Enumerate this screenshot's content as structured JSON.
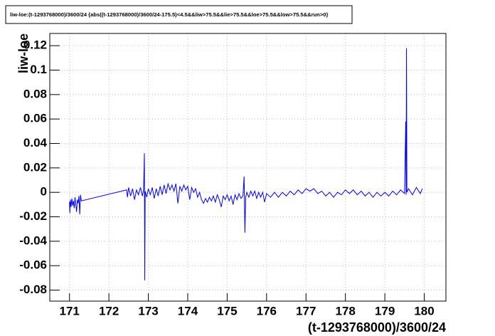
{
  "chart_data": {
    "type": "line",
    "title": "liw-loe:(t-1293768000)/3600/24 {abs((t-1293768000)/3600/24-175.5)<4.5&&liw>75.5&&lie>75.5&&loe>75.5&&low>75.5&&run>0}",
    "x_label": "(t-1293768000)/3600/24",
    "y_label": "liw-loe",
    "color": "#0000ff",
    "grid": true,
    "xlim": [
      170.5,
      180.55
    ],
    "ylim": [
      -0.089,
      0.13
    ],
    "xticks": [
      171,
      172,
      173,
      174,
      175,
      176,
      177,
      178,
      179,
      180
    ],
    "yticks": [
      -0.08,
      -0.06,
      -0.04,
      -0.02,
      0,
      0.02,
      0.04,
      0.06,
      0.08,
      0.1,
      0.12
    ],
    "x": [
      171.0,
      171.01,
      171.02,
      171.04,
      171.06,
      171.08,
      171.1,
      171.12,
      171.14,
      171.16,
      171.18,
      171.2,
      171.22,
      171.24,
      171.26,
      171.28,
      171.3,
      172.45,
      172.47,
      172.5,
      172.55,
      172.6,
      172.65,
      172.7,
      172.75,
      172.8,
      172.85,
      172.88,
      172.9,
      172.91,
      172.92,
      172.96,
      173.0,
      173.05,
      173.1,
      173.15,
      173.2,
      173.25,
      173.3,
      173.35,
      173.4,
      173.45,
      173.5,
      173.55,
      173.6,
      173.65,
      173.7,
      173.75,
      173.8,
      173.85,
      173.9,
      173.95,
      174.0,
      174.05,
      174.1,
      174.15,
      174.2,
      174.25,
      174.3,
      174.35,
      174.4,
      174.45,
      174.5,
      174.55,
      174.6,
      174.65,
      174.7,
      174.75,
      174.8,
      174.85,
      174.9,
      174.95,
      175.0,
      175.05,
      175.1,
      175.15,
      175.2,
      175.25,
      175.3,
      175.35,
      175.4,
      175.43,
      175.45,
      175.47,
      175.5,
      175.55,
      175.6,
      175.65,
      175.7,
      175.75,
      175.8,
      175.85,
      175.9,
      175.95,
      176.0,
      176.1,
      176.2,
      176.3,
      176.4,
      176.5,
      176.6,
      176.7,
      176.8,
      176.9,
      177.0,
      177.1,
      177.2,
      177.3,
      177.4,
      177.5,
      177.6,
      177.7,
      177.8,
      177.9,
      178.0,
      178.1,
      178.2,
      178.3,
      178.4,
      178.5,
      178.6,
      178.7,
      178.8,
      178.9,
      179.0,
      179.1,
      179.2,
      179.3,
      179.4,
      179.5,
      179.53,
      179.54,
      179.55,
      179.56,
      179.6,
      179.7,
      179.8,
      179.9,
      179.95
    ],
    "values": [
      -0.008,
      -0.017,
      -0.006,
      -0.012,
      -0.005,
      -0.011,
      -0.007,
      -0.013,
      -0.004,
      -0.01,
      -0.016,
      -0.006,
      -0.009,
      -0.003,
      -0.018,
      -0.002,
      -0.007,
      0.002,
      -0.004,
      0.004,
      -0.003,
      0.003,
      -0.006,
      0.002,
      -0.002,
      0.004,
      -0.003,
      0.002,
      0.032,
      -0.072,
      0.001,
      -0.004,
      0.003,
      -0.002,
      0.004,
      -0.005,
      0.003,
      -0.003,
      0.005,
      -0.002,
      0.006,
      -0.001,
      0.007,
      0.002,
      0.006,
      0.001,
      0.007,
      -0.009,
      0.005,
      0.001,
      0.006,
      0.002,
      0.005,
      -0.006,
      0.004,
      0.0,
      0.003,
      -0.004,
      0.0,
      -0.006,
      -0.009,
      -0.005,
      -0.008,
      -0.004,
      -0.007,
      -0.003,
      -0.008,
      -0.002,
      -0.006,
      -0.012,
      -0.003,
      -0.006,
      -0.002,
      -0.007,
      -0.003,
      -0.01,
      -0.002,
      -0.006,
      -0.001,
      -0.005,
      -0.003,
      0.013,
      -0.033,
      -0.004,
      0.0,
      -0.004,
      0.001,
      -0.003,
      0.001,
      -0.005,
      0.0,
      -0.004,
      0.0,
      -0.008,
      -0.001,
      -0.004,
      0.0,
      -0.004,
      0.0,
      -0.003,
      0.001,
      -0.002,
      0.002,
      -0.001,
      0.003,
      0.001,
      0.003,
      -0.001,
      0.001,
      -0.003,
      0.0,
      -0.004,
      0.0,
      -0.002,
      0.002,
      -0.001,
      0.002,
      -0.002,
      0.001,
      -0.003,
      0.0,
      -0.004,
      0.0,
      -0.003,
      0.0,
      -0.003,
      0.001,
      -0.002,
      0.002,
      -0.001,
      0.058,
      -0.002,
      0.118,
      0.0,
      0.003,
      -0.002,
      0.004,
      -0.001,
      0.003
    ]
  }
}
